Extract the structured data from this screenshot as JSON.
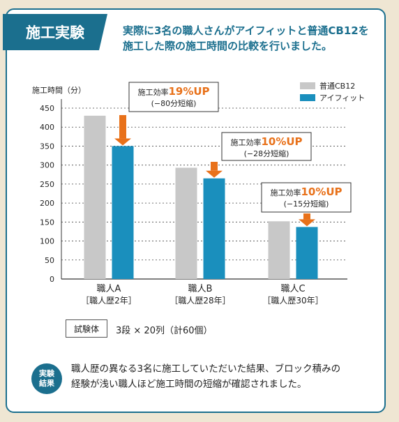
{
  "header": {
    "tag_label": "施工実験",
    "line1": "実際に3名の職人さんがアイフィットと普通CB12を",
    "line2": "施工した際の施工時間の比較を行いました。"
  },
  "colors": {
    "accent": "#1b6f8e",
    "bar_gray": "#c8c8c8",
    "bar_blue": "#1a8fbd",
    "arrow": "#e8711a"
  },
  "chart_data": {
    "type": "bar",
    "ylabel": "施工時間（分）",
    "ylim": [
      0,
      450
    ],
    "yticks": [
      0,
      50,
      100,
      150,
      200,
      250,
      300,
      350,
      400,
      450
    ],
    "grid": true,
    "legend_position": "top-right",
    "categories": [
      {
        "name": "職人A",
        "sub": "［職人歴2年］"
      },
      {
        "name": "職人B",
        "sub": "［職人歴28年］"
      },
      {
        "name": "職人C",
        "sub": "［職人歴30年］"
      }
    ],
    "series": [
      {
        "name": "普通CB12",
        "values": [
          430,
          293,
          152
        ]
      },
      {
        "name": "アイフィット",
        "values": [
          350,
          265,
          137
        ]
      }
    ],
    "callouts": [
      {
        "prefix": "施工効率",
        "value": "19%UP",
        "detail": "(−80分短縮)"
      },
      {
        "prefix": "施工効率",
        "value": "10%UP",
        "detail": "(−28分短縮)"
      },
      {
        "prefix": "施工効率",
        "value": "10%UP",
        "detail": "(−15分短縮)"
      }
    ]
  },
  "test": {
    "label": "試験体",
    "spec": "3段 × 20列（計60個）"
  },
  "result": {
    "badge_line1": "実験",
    "badge_line2": "結果",
    "line1": "職人歴の異なる3名に施工していただいた結果、ブロック積みの",
    "line2": "経験が浅い職人ほど施工時間の短縮が確認されました。"
  }
}
